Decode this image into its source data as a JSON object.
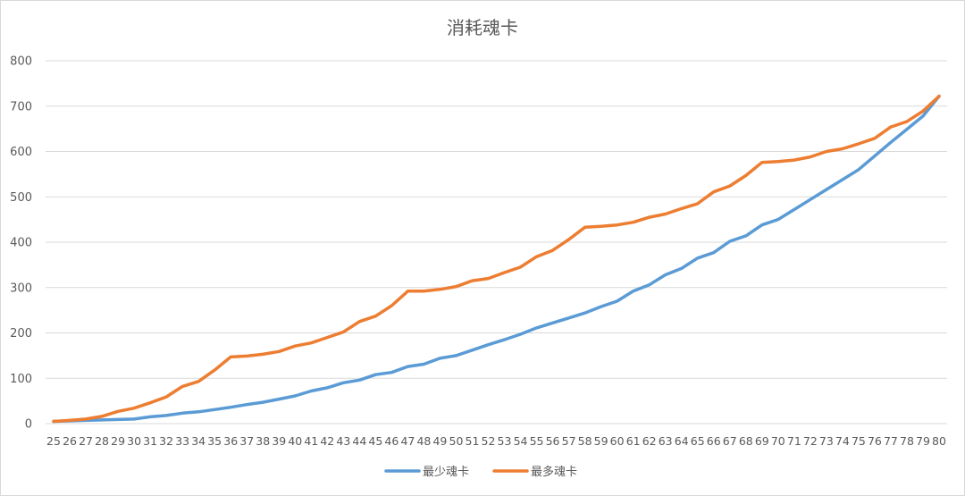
{
  "chart_data": {
    "type": "line",
    "title": "消耗魂卡",
    "xlabel": "",
    "ylabel": "",
    "x": [
      25,
      26,
      27,
      28,
      29,
      30,
      31,
      32,
      33,
      34,
      35,
      36,
      37,
      38,
      39,
      40,
      41,
      42,
      43,
      44,
      45,
      46,
      47,
      48,
      49,
      50,
      51,
      52,
      53,
      54,
      55,
      56,
      57,
      58,
      59,
      60,
      61,
      62,
      63,
      64,
      65,
      66,
      67,
      68,
      69,
      70,
      71,
      72,
      73,
      74,
      75,
      76,
      77,
      78,
      79,
      80
    ],
    "ylim": [
      0,
      800
    ],
    "yticks": [
      0,
      100,
      200,
      300,
      400,
      500,
      600,
      700,
      800
    ],
    "grid": true,
    "legend_position": "bottom",
    "series": [
      {
        "name": "最少魂卡",
        "color": "#5B9BD5",
        "values": [
          5,
          6,
          7,
          8,
          9,
          10,
          15,
          18,
          23,
          26,
          31,
          36,
          42,
          47,
          54,
          61,
          72,
          79,
          90,
          96,
          108,
          113,
          126,
          131,
          144,
          150,
          162,
          174,
          185,
          197,
          211,
          222,
          233,
          244,
          258,
          270,
          292,
          306,
          328,
          342,
          365,
          377,
          402,
          414,
          438,
          450,
          472,
          494,
          516,
          538,
          560,
          590,
          620,
          649,
          678,
          722
        ]
      },
      {
        "name": "最多魂卡",
        "color": "#ED7D31",
        "values": [
          5,
          7,
          10,
          16,
          27,
          34,
          46,
          59,
          82,
          93,
          118,
          147,
          149,
          153,
          159,
          171,
          178,
          190,
          202,
          225,
          237,
          260,
          292,
          292,
          296,
          302,
          315,
          320,
          333,
          345,
          368,
          382,
          406,
          433,
          435,
          438,
          444,
          455,
          462,
          474,
          485,
          511,
          524,
          547,
          576,
          578,
          581,
          588,
          600,
          606,
          617,
          629,
          654,
          666,
          689,
          722
        ]
      }
    ]
  }
}
